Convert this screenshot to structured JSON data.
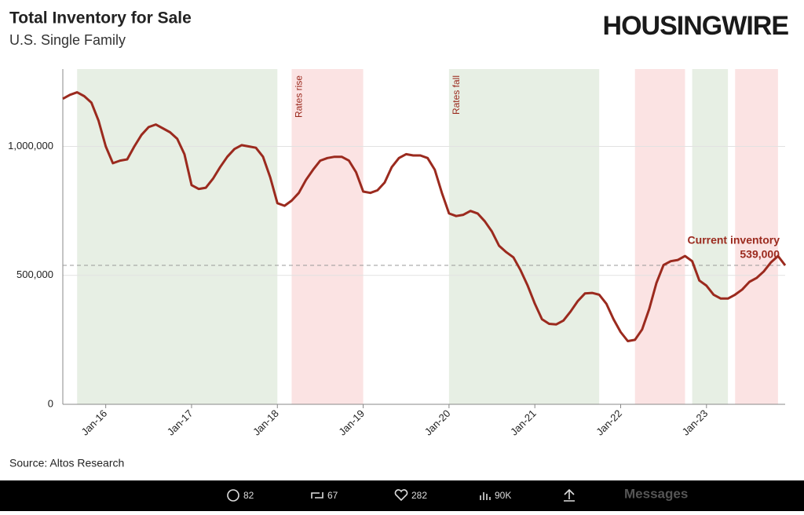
{
  "chart_data": {
    "type": "line",
    "title": "Total Inventory for Sale",
    "subtitle": "U.S. Single Family",
    "source": "Source: Altos Research",
    "brand": "HOUSINGWIRE",
    "color": "#9b2a1e",
    "x": [
      "2015-07",
      "2015-08",
      "2015-09",
      "2015-10",
      "2015-11",
      "2015-12",
      "2016-01",
      "2016-02",
      "2016-03",
      "2016-04",
      "2016-05",
      "2016-06",
      "2016-07",
      "2016-08",
      "2016-09",
      "2016-10",
      "2016-11",
      "2016-12",
      "2017-01",
      "2017-02",
      "2017-03",
      "2017-04",
      "2017-05",
      "2017-06",
      "2017-07",
      "2017-08",
      "2017-09",
      "2017-10",
      "2017-11",
      "2017-12",
      "2018-01",
      "2018-02",
      "2018-03",
      "2018-04",
      "2018-05",
      "2018-06",
      "2018-07",
      "2018-08",
      "2018-09",
      "2018-10",
      "2018-11",
      "2018-12",
      "2019-01",
      "2019-02",
      "2019-03",
      "2019-04",
      "2019-05",
      "2019-06",
      "2019-07",
      "2019-08",
      "2019-09",
      "2019-10",
      "2019-11",
      "2019-12",
      "2020-01",
      "2020-02",
      "2020-03",
      "2020-04",
      "2020-05",
      "2020-06",
      "2020-07",
      "2020-08",
      "2020-09",
      "2020-10",
      "2020-11",
      "2020-12",
      "2021-01",
      "2021-02",
      "2021-03",
      "2021-04",
      "2021-05",
      "2021-06",
      "2021-07",
      "2021-08",
      "2021-09",
      "2021-10",
      "2021-11",
      "2021-12",
      "2022-01",
      "2022-02",
      "2022-03",
      "2022-04",
      "2022-05",
      "2022-06",
      "2022-07",
      "2022-08",
      "2022-09",
      "2022-10",
      "2022-11",
      "2022-12",
      "2023-01",
      "2023-02",
      "2023-03",
      "2023-04",
      "2023-05",
      "2023-06",
      "2023-07",
      "2023-08",
      "2023-09",
      "2023-10",
      "2023-11",
      "2023-12"
    ],
    "values": [
      1185000,
      1200000,
      1210000,
      1195000,
      1170000,
      1100000,
      1000000,
      935000,
      945000,
      950000,
      1000000,
      1045000,
      1075000,
      1085000,
      1070000,
      1055000,
      1030000,
      970000,
      850000,
      835000,
      840000,
      875000,
      920000,
      960000,
      990000,
      1005000,
      1000000,
      995000,
      960000,
      880000,
      780000,
      770000,
      790000,
      820000,
      870000,
      910000,
      945000,
      955000,
      960000,
      960000,
      945000,
      900000,
      825000,
      820000,
      830000,
      860000,
      920000,
      955000,
      970000,
      965000,
      965000,
      955000,
      910000,
      820000,
      740000,
      730000,
      735000,
      750000,
      740000,
      710000,
      670000,
      615000,
      590000,
      570000,
      520000,
      460000,
      390000,
      330000,
      312000,
      310000,
      325000,
      360000,
      400000,
      430000,
      432000,
      425000,
      390000,
      330000,
      280000,
      245000,
      250000,
      290000,
      370000,
      470000,
      540000,
      555000,
      560000,
      575000,
      555000,
      480000,
      460000,
      425000,
      410000,
      410000,
      425000,
      445000,
      475000,
      490000,
      515000,
      550000,
      575000,
      539000
    ],
    "xlim": [
      "2015-07",
      "2023-12"
    ],
    "xticks": [
      {
        "value": "2016-01",
        "label": "Jan-16"
      },
      {
        "value": "2017-01",
        "label": "Jan-17"
      },
      {
        "value": "2018-01",
        "label": "Jan-18"
      },
      {
        "value": "2019-01",
        "label": "Jan-19"
      },
      {
        "value": "2020-01",
        "label": "Jan-20"
      },
      {
        "value": "2021-01",
        "label": "Jan-21"
      },
      {
        "value": "2022-01",
        "label": "Jan-22"
      },
      {
        "value": "2023-01",
        "label": "Jan-23"
      }
    ],
    "ylim": [
      0,
      1300000
    ],
    "yticks": [
      0,
      {
        "value": 500000,
        "label": "500,000"
      },
      {
        "value": 1000000,
        "label": "1,000,000"
      }
    ],
    "grid": true,
    "bands": [
      {
        "start": "2015-09",
        "end": "2018-01",
        "color": "#e7efe4"
      },
      {
        "start": "2018-03",
        "end": "2019-01",
        "color": "#fbe3e3",
        "label": "Rates rise"
      },
      {
        "start": "2020-01",
        "end": "2021-10",
        "color": "#e7efe4",
        "label": "Rates fall"
      },
      {
        "start": "2022-03",
        "end": "2022-10",
        "color": "#fbe3e3"
      },
      {
        "start": "2022-11",
        "end": "2023-04",
        "color": "#e7efe4"
      },
      {
        "start": "2023-05",
        "end": "2023-11",
        "color": "#fbe3e3"
      }
    ],
    "reference": {
      "value": 539000,
      "value_label": "539,000",
      "label": "Current inventory"
    }
  },
  "tweet_bar": {
    "replies": "82",
    "retweets": "67",
    "likes": "282",
    "views": "90K",
    "side": "Messages"
  }
}
